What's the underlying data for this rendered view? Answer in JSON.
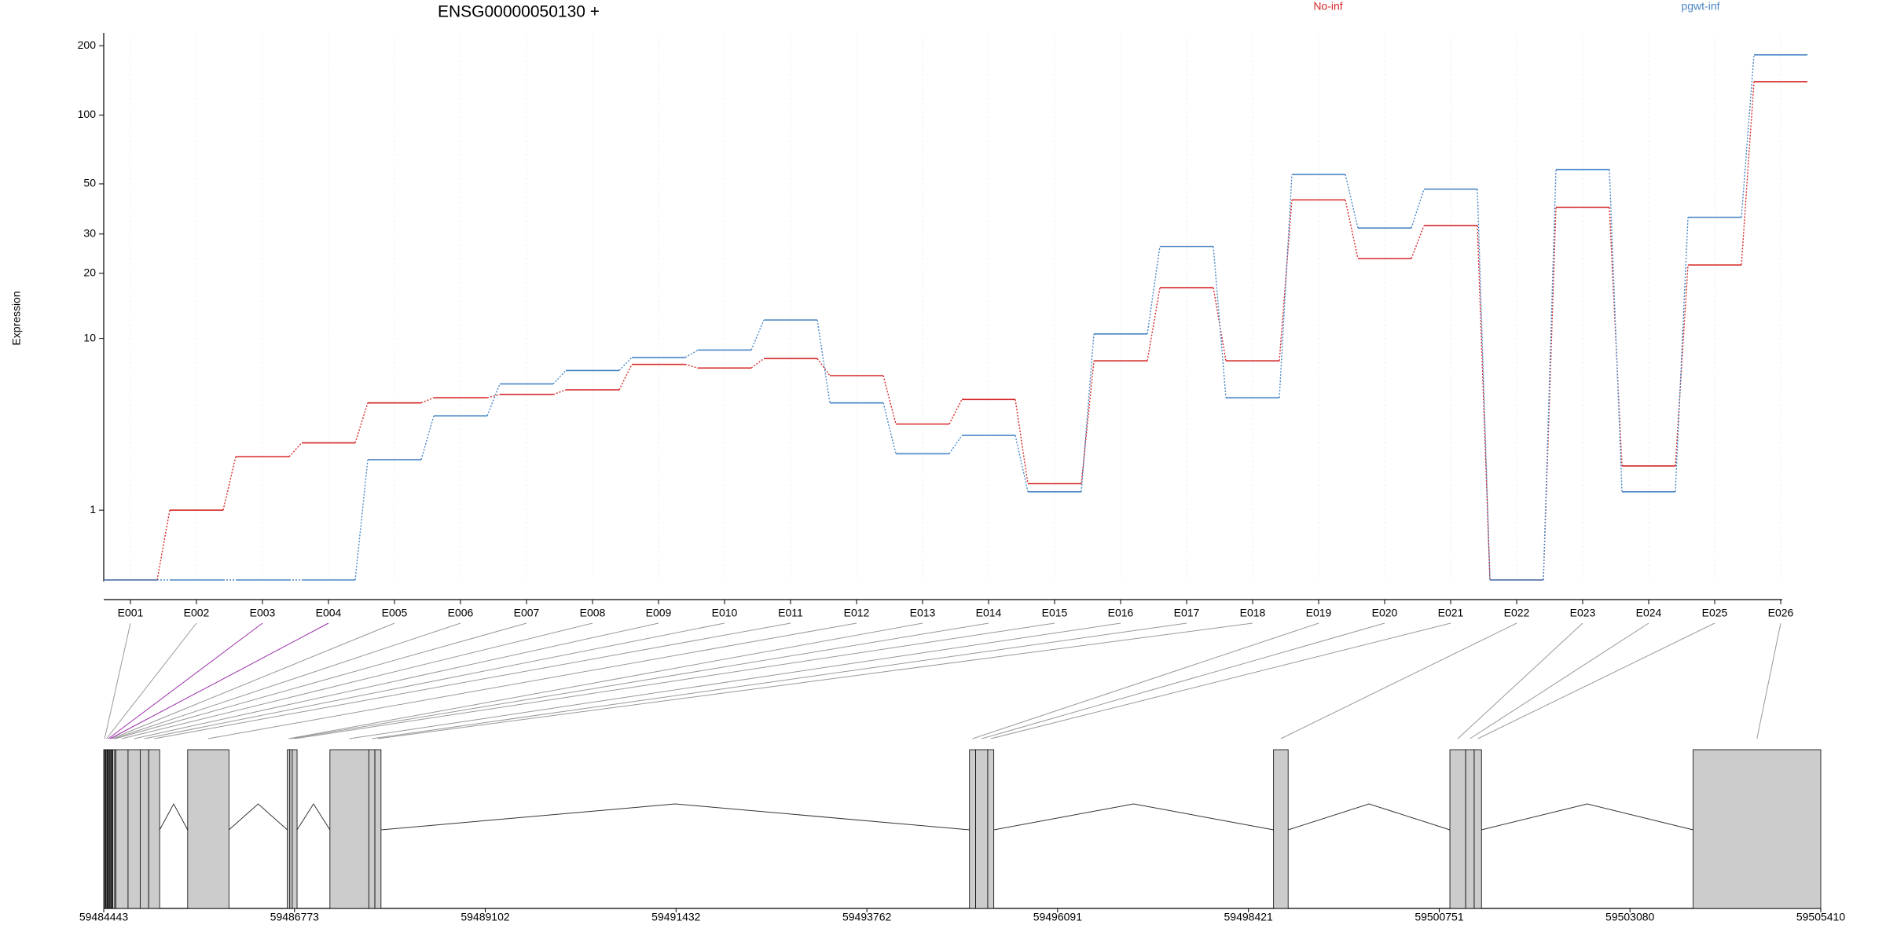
{
  "chart_data": {
    "type": "step",
    "title": "ENSG00000050130 +",
    "y_label": "Expression",
    "yscale": "log1p",
    "ylim": [
      0,
      220
    ],
    "yticks": [
      1,
      10,
      20,
      30,
      50,
      100,
      200
    ],
    "grid": true,
    "categories": [
      "E001",
      "E002",
      "E003",
      "E004",
      "E005",
      "E006",
      "E007",
      "E008",
      "E009",
      "E010",
      "E011",
      "E012",
      "E013",
      "E014",
      "E015",
      "E016",
      "E017",
      "E018",
      "E019",
      "E020",
      "E021",
      "E022",
      "E023",
      "E024",
      "E025",
      "E026"
    ],
    "series": [
      {
        "name": "No-inf",
        "color": "#d62728",
        "values": [
          0,
          1.0,
          2.4,
          2.9,
          4.8,
          5.1,
          5.3,
          5.6,
          7.5,
          7.2,
          8.0,
          6.6,
          3.7,
          5.0,
          1.6,
          7.8,
          17.2,
          7.8,
          42.5,
          23.3,
          32.7,
          0,
          39.4,
          2.1,
          21.8,
          139.6
        ]
      },
      {
        "name": "pgwt-inf",
        "color": "#4a86c5",
        "values": [
          0,
          0,
          0,
          0,
          2.3,
          4.1,
          6.0,
          7.0,
          8.1,
          8.8,
          12.2,
          4.8,
          2.5,
          3.2,
          1.4,
          10.5,
          26.4,
          5.1,
          55,
          31.9,
          47.4,
          0,
          57.8,
          1.4,
          35.6,
          182.6
        ]
      }
    ],
    "gene_model": {
      "xlim": [
        59484443,
        59505410
      ],
      "xticks": [
        59484443,
        59486773,
        59489102,
        59491432,
        59493762,
        59496091,
        59498421,
        59500751,
        59503080,
        59505410
      ],
      "exons": [
        {
          "start": 59484443,
          "end": 59484465
        },
        {
          "start": 59484465,
          "end": 59484488
        },
        {
          "start": 59484488,
          "end": 59484510
        },
        {
          "start": 59484510,
          "end": 59484532
        },
        {
          "start": 59484532,
          "end": 59484554
        },
        {
          "start": 59484554,
          "end": 59484577
        },
        {
          "start": 59484577,
          "end": 59484591
        },
        {
          "start": 59484591,
          "end": 59484740
        },
        {
          "start": 59484740,
          "end": 59484888
        },
        {
          "start": 59484888,
          "end": 59484992
        },
        {
          "start": 59484992,
          "end": 59485126
        },
        {
          "start": 59485468,
          "end": 59485972
        },
        {
          "start": 59486685,
          "end": 59486715
        },
        {
          "start": 59486715,
          "end": 59486745
        },
        {
          "start": 59486745,
          "end": 59486804
        },
        {
          "start": 59487205,
          "end": 59487680
        },
        {
          "start": 59487680,
          "end": 59487754
        },
        {
          "start": 59487754,
          "end": 59487829
        },
        {
          "start": 59495015,
          "end": 59495090
        },
        {
          "start": 59495090,
          "end": 59495238
        },
        {
          "start": 59495238,
          "end": 59495312
        },
        {
          "start": 59498728,
          "end": 59498906
        },
        {
          "start": 59500881,
          "end": 59501074
        },
        {
          "start": 59501074,
          "end": 59501178
        },
        {
          "start": 59501178,
          "end": 59501267
        },
        {
          "start": 59503851,
          "end": 59505410
        }
      ]
    }
  }
}
